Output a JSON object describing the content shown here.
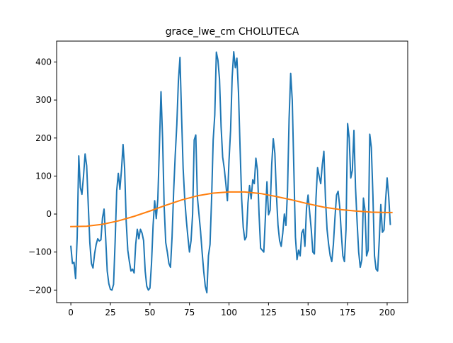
{
  "chart_data": {
    "type": "line",
    "title": "grace_lwe_cm CHOLUTECA",
    "xlabel": "",
    "ylabel": "",
    "xlim": [
      -9,
      213
    ],
    "ylim": [
      -233,
      455
    ],
    "xticks": [
      0,
      25,
      50,
      75,
      100,
      125,
      150,
      175,
      200
    ],
    "yticks": [
      -200,
      -100,
      0,
      100,
      200,
      300,
      400
    ],
    "grid": false,
    "legend": "none",
    "series": [
      {
        "color": "#1f77b4",
        "points": [
          [
            0,
            -85
          ],
          [
            1,
            -130
          ],
          [
            2,
            -127
          ],
          [
            3,
            -170
          ],
          [
            4,
            -60
          ],
          [
            5,
            153
          ],
          [
            6,
            70
          ],
          [
            7,
            52
          ],
          [
            8,
            100
          ],
          [
            9,
            158
          ],
          [
            10,
            127
          ],
          [
            11,
            25
          ],
          [
            12,
            -75
          ],
          [
            13,
            -130
          ],
          [
            14,
            -142
          ],
          [
            15,
            -105
          ],
          [
            16,
            -80
          ],
          [
            17,
            -65
          ],
          [
            18,
            -71
          ],
          [
            19,
            -68
          ],
          [
            20,
            -10
          ],
          [
            21,
            13
          ],
          [
            22,
            -62
          ],
          [
            23,
            -150
          ],
          [
            24,
            -183
          ],
          [
            25,
            -198
          ],
          [
            26,
            -200
          ],
          [
            27,
            -185
          ],
          [
            28,
            -72
          ],
          [
            29,
            62
          ],
          [
            30,
            107
          ],
          [
            31,
            65
          ],
          [
            32,
            115
          ],
          [
            33,
            183
          ],
          [
            34,
            120
          ],
          [
            35,
            -20
          ],
          [
            36,
            -95
          ],
          [
            37,
            -125
          ],
          [
            38,
            -150
          ],
          [
            39,
            -145
          ],
          [
            40,
            -155
          ],
          [
            41,
            -80
          ],
          [
            42,
            -40
          ],
          [
            43,
            -65
          ],
          [
            44,
            -40
          ],
          [
            45,
            -50
          ],
          [
            46,
            -70
          ],
          [
            47,
            -150
          ],
          [
            48,
            -190
          ],
          [
            49,
            -200
          ],
          [
            50,
            -195
          ],
          [
            51,
            -130
          ],
          [
            52,
            -30
          ],
          [
            53,
            35
          ],
          [
            54,
            -12
          ],
          [
            55,
            40
          ],
          [
            56,
            180
          ],
          [
            57,
            322
          ],
          [
            58,
            200
          ],
          [
            59,
            20
          ],
          [
            60,
            -75
          ],
          [
            61,
            -100
          ],
          [
            62,
            -130
          ],
          [
            63,
            -140
          ],
          [
            64,
            -60
          ],
          [
            65,
            60
          ],
          [
            66,
            155
          ],
          [
            67,
            235
          ],
          [
            68,
            350
          ],
          [
            69,
            412
          ],
          [
            70,
            260
          ],
          [
            71,
            120
          ],
          [
            72,
            40
          ],
          [
            73,
            -15
          ],
          [
            74,
            -60
          ],
          [
            75,
            -100
          ],
          [
            76,
            -70
          ],
          [
            77,
            0
          ],
          [
            78,
            195
          ],
          [
            79,
            208
          ],
          [
            80,
            45
          ],
          [
            81,
            0
          ],
          [
            82,
            -45
          ],
          [
            83,
            -100
          ],
          [
            84,
            -150
          ],
          [
            85,
            -190
          ],
          [
            86,
            -207
          ],
          [
            87,
            -110
          ],
          [
            88,
            -80
          ],
          [
            89,
            40
          ],
          [
            90,
            195
          ],
          [
            91,
            260
          ],
          [
            92,
            426
          ],
          [
            93,
            405
          ],
          [
            94,
            355
          ],
          [
            95,
            230
          ],
          [
            96,
            150
          ],
          [
            97,
            120
          ],
          [
            98,
            80
          ],
          [
            99,
            35
          ],
          [
            100,
            140
          ],
          [
            101,
            220
          ],
          [
            102,
            360
          ],
          [
            103,
            427
          ],
          [
            104,
            385
          ],
          [
            105,
            410
          ],
          [
            106,
            320
          ],
          [
            107,
            175
          ],
          [
            108,
            40
          ],
          [
            109,
            -35
          ],
          [
            110,
            -68
          ],
          [
            111,
            -60
          ],
          [
            112,
            30
          ],
          [
            113,
            75
          ],
          [
            114,
            40
          ],
          [
            115,
            90
          ],
          [
            116,
            80
          ],
          [
            117,
            147
          ],
          [
            118,
            115
          ],
          [
            119,
            0
          ],
          [
            120,
            -90
          ],
          [
            121,
            -95
          ],
          [
            122,
            -100
          ],
          [
            123,
            -10
          ],
          [
            124,
            85
          ],
          [
            125,
            -2
          ],
          [
            126,
            10
          ],
          [
            127,
            130
          ],
          [
            128,
            198
          ],
          [
            129,
            160
          ],
          [
            130,
            50
          ],
          [
            131,
            -30
          ],
          [
            132,
            -70
          ],
          [
            133,
            -85
          ],
          [
            134,
            -50
          ],
          [
            135,
            0
          ],
          [
            136,
            -30
          ],
          [
            137,
            60
          ],
          [
            138,
            250
          ],
          [
            139,
            370
          ],
          [
            140,
            300
          ],
          [
            141,
            120
          ],
          [
            142,
            -60
          ],
          [
            143,
            -120
          ],
          [
            144,
            -95
          ],
          [
            145,
            -110
          ],
          [
            146,
            -50
          ],
          [
            147,
            -40
          ],
          [
            148,
            -85
          ],
          [
            149,
            15
          ],
          [
            150,
            50
          ],
          [
            151,
            5
          ],
          [
            152,
            -40
          ],
          [
            153,
            -100
          ],
          [
            154,
            -105
          ],
          [
            155,
            40
          ],
          [
            156,
            122
          ],
          [
            157,
            100
          ],
          [
            158,
            80
          ],
          [
            159,
            130
          ],
          [
            160,
            165
          ],
          [
            161,
            40
          ],
          [
            162,
            -40
          ],
          [
            163,
            -80
          ],
          [
            164,
            -110
          ],
          [
            165,
            -125
          ],
          [
            166,
            -80
          ],
          [
            167,
            -10
          ],
          [
            168,
            50
          ],
          [
            169,
            60
          ],
          [
            170,
            20
          ],
          [
            171,
            -50
          ],
          [
            172,
            -110
          ],
          [
            173,
            -125
          ],
          [
            174,
            -40
          ],
          [
            175,
            238
          ],
          [
            176,
            200
          ],
          [
            177,
            95
          ],
          [
            178,
            115
          ],
          [
            179,
            220
          ],
          [
            180,
            70
          ],
          [
            181,
            -20
          ],
          [
            182,
            -100
          ],
          [
            183,
            -140
          ],
          [
            184,
            -120
          ],
          [
            185,
            42
          ],
          [
            186,
            10
          ],
          [
            187,
            -110
          ],
          [
            188,
            -95
          ],
          [
            189,
            210
          ],
          [
            190,
            175
          ],
          [
            191,
            50
          ],
          [
            192,
            -110
          ],
          [
            193,
            -145
          ],
          [
            194,
            -150
          ],
          [
            195,
            -70
          ],
          [
            196,
            25
          ],
          [
            197,
            -48
          ],
          [
            198,
            -42
          ],
          [
            199,
            35
          ],
          [
            200,
            95
          ],
          [
            201,
            45
          ],
          [
            202,
            -27
          ]
        ]
      },
      {
        "color": "#ff7f0e",
        "points": [
          [
            0,
            -33
          ],
          [
            10,
            -32
          ],
          [
            20,
            -27
          ],
          [
            30,
            -18
          ],
          [
            40,
            -6
          ],
          [
            50,
            8
          ],
          [
            60,
            23
          ],
          [
            70,
            37
          ],
          [
            80,
            48
          ],
          [
            90,
            55
          ],
          [
            100,
            58
          ],
          [
            110,
            58
          ],
          [
            120,
            54
          ],
          [
            130,
            46
          ],
          [
            140,
            37
          ],
          [
            150,
            27
          ],
          [
            160,
            18
          ],
          [
            170,
            12
          ],
          [
            180,
            8
          ],
          [
            190,
            5
          ],
          [
            200,
            4
          ],
          [
            203,
            4
          ]
        ]
      }
    ]
  }
}
